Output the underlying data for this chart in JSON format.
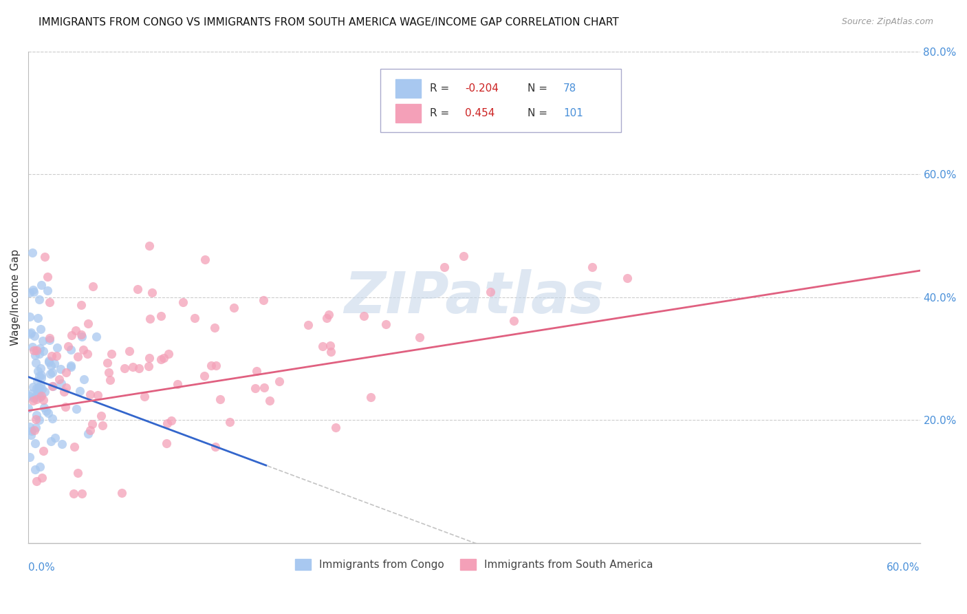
{
  "title": "IMMIGRANTS FROM CONGO VS IMMIGRANTS FROM SOUTH AMERICA WAGE/INCOME GAP CORRELATION CHART",
  "source": "Source: ZipAtlas.com",
  "ylabel": "Wage/Income Gap",
  "yticks_right": [
    0.0,
    0.2,
    0.4,
    0.6,
    0.8
  ],
  "ytick_labels_right": [
    "",
    "20.0%",
    "40.0%",
    "60.0%",
    "80.0%"
  ],
  "xlim": [
    0.0,
    0.6
  ],
  "ylim": [
    0.0,
    0.8
  ],
  "congo_R": -0.204,
  "congo_N": 78,
  "sa_R": 0.454,
  "sa_N": 101,
  "congo_color": "#a8c8f0",
  "sa_color": "#f4a0b8",
  "congo_line_color": "#3366cc",
  "sa_line_color": "#e06080",
  "watermark_text": "ZIPatlas",
  "watermark_color": "#c8d8ea",
  "background_color": "#ffffff",
  "grid_color": "#cccccc",
  "title_color": "#111111",
  "source_color": "#999999",
  "axis_label_color": "#333333",
  "right_tick_color": "#4a90d9",
  "legend_border_color": "#aaaacc",
  "bottom_legend_color": "#444444"
}
